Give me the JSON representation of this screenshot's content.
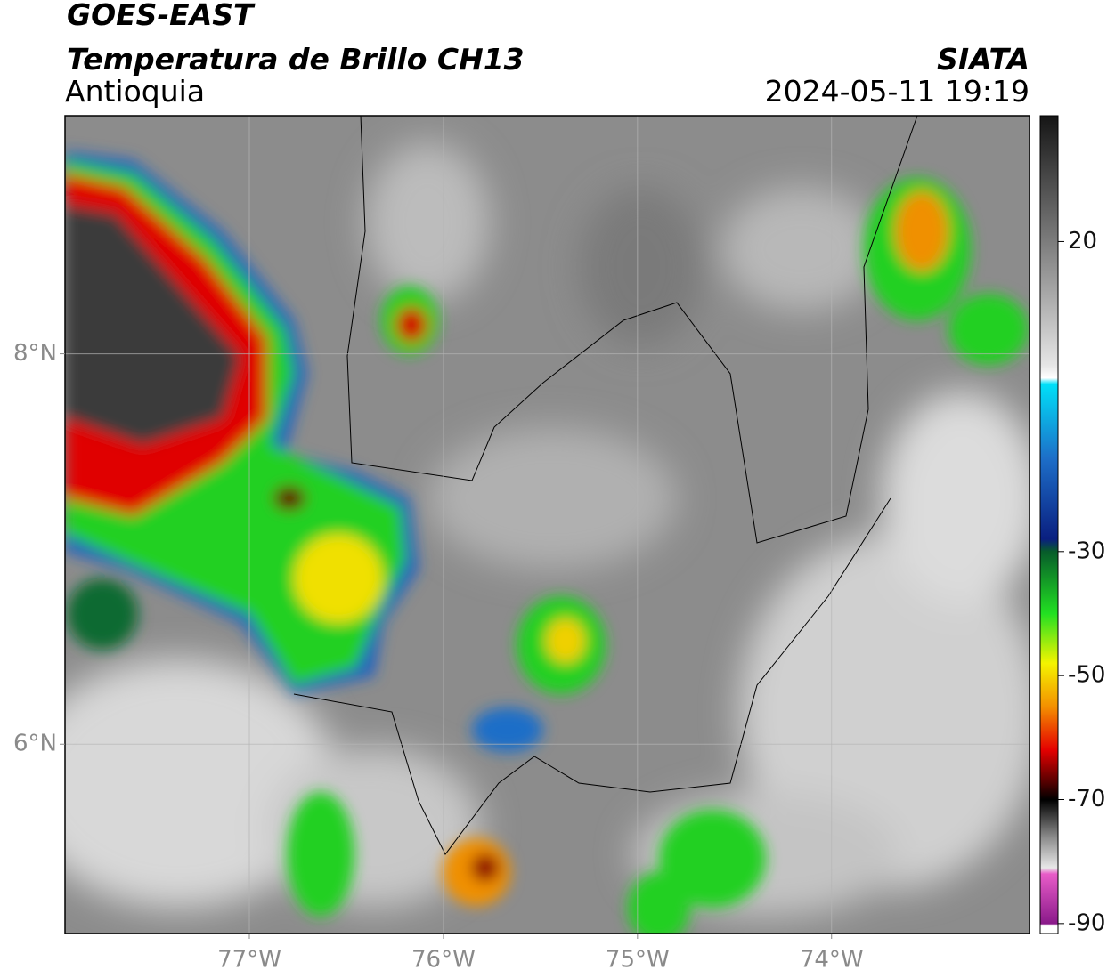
{
  "header": {
    "satellite": "GOES-EAST",
    "product": "Temperatura de Brillo CH13",
    "region": "Antioquia",
    "source": "SIATA",
    "datetime": "2024-05-11 19:19"
  },
  "map": {
    "xlim": [
      -77.95,
      -72.98
    ],
    "ylim": [
      5.03,
      9.22
    ],
    "xticks": [
      {
        "value": -77,
        "label": "77°W"
      },
      {
        "value": -76,
        "label": "76°W"
      },
      {
        "value": -75,
        "label": "75°W"
      },
      {
        "value": -74,
        "label": "74°W"
      }
    ],
    "yticks": [
      {
        "value": 8,
        "label": "8°N"
      },
      {
        "value": 6,
        "label": "6°N"
      }
    ],
    "grid": true
  },
  "colorbar": {
    "ylim": [
      -91.6,
      40.3
    ],
    "ticks": [
      20,
      -30,
      -50,
      -70,
      -90
    ],
    "stops": [
      {
        "value": 40.3,
        "color": "#151515"
      },
      {
        "value": 30,
        "color": "#4a4a4a"
      },
      {
        "value": 20,
        "color": "#7c7c7c"
      },
      {
        "value": 10,
        "color": "#b0b0b0"
      },
      {
        "value": 0,
        "color": "#e6e6e6"
      },
      {
        "value": -2,
        "color": "#ffffff"
      },
      {
        "value": -3,
        "color": "#00e0f8"
      },
      {
        "value": -15,
        "color": "#1d6ec8"
      },
      {
        "value": -28,
        "color": "#0a1f80"
      },
      {
        "value": -30,
        "color": "#075c2a"
      },
      {
        "value": -40,
        "color": "#22e022"
      },
      {
        "value": -48,
        "color": "#f4f400"
      },
      {
        "value": -55,
        "color": "#f49000"
      },
      {
        "value": -62,
        "color": "#e40000"
      },
      {
        "value": -67,
        "color": "#5a0000"
      },
      {
        "value": -70,
        "color": "#000000"
      },
      {
        "value": -76,
        "color": "#8a8a8a"
      },
      {
        "value": -81,
        "color": "#e8e8e8"
      },
      {
        "value": -82,
        "color": "#e85cc8"
      },
      {
        "value": -90,
        "color": "#8a1a8a"
      },
      {
        "value": -90.4,
        "color": "#ffffff"
      },
      {
        "value": -91.6,
        "color": "#ffffff"
      }
    ]
  }
}
